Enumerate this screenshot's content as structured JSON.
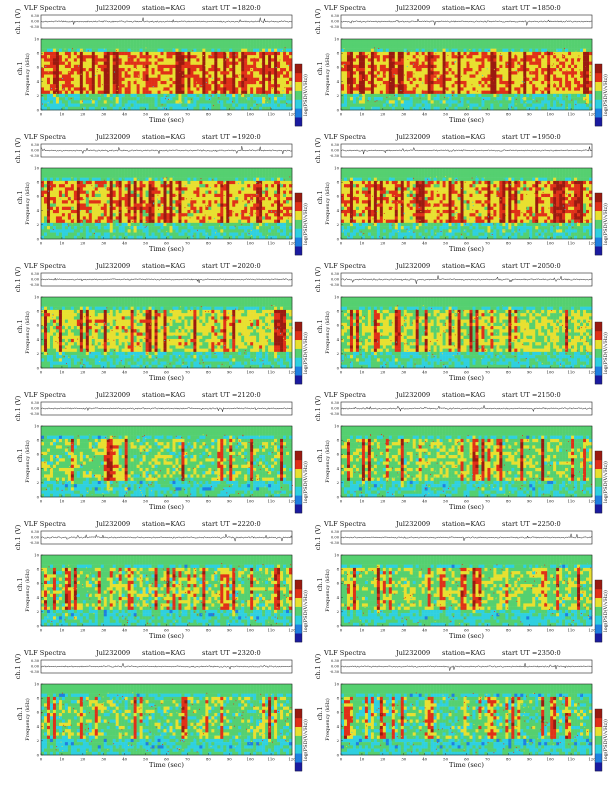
{
  "figure": {
    "program_title": "VLF Spectra",
    "station": "station=KAG",
    "time_axis_label": "Time (sec)",
    "time_ticks": [
      "0",
      "10",
      "20",
      "30",
      "40",
      "50",
      "60",
      "70",
      "80",
      "90",
      "100",
      "110",
      "120"
    ],
    "waveform_label": "ch.1 (V)",
    "waveform_ticks": [
      "0.30",
      "0.00",
      "-0.30"
    ],
    "freq_label": "Frequency (kHz)",
    "channel_label": "ch.1",
    "freq_ticks": [
      "0",
      "2",
      "4",
      "6",
      "8",
      "10"
    ],
    "colorbar_label": "log(PSD(V/√Hz))"
  },
  "panels": [
    {
      "date": "Jul232009",
      "ut": "start  UT =1820:0"
    },
    {
      "date": "Jul232009",
      "ut": "start  UT =1850:0"
    },
    {
      "date": "Jul232009",
      "ut": "start  UT =1920:0"
    },
    {
      "date": "Jul232009",
      "ut": "start  UT =1950:0"
    },
    {
      "date": "Jul232009",
      "ut": "start  UT =2020:0"
    },
    {
      "date": "Jul232009",
      "ut": "start  UT =2050:0"
    },
    {
      "date": "Jul232009",
      "ut": "start  UT =2120:0"
    },
    {
      "date": "Jul232009",
      "ut": "start  UT =2150:0"
    },
    {
      "date": "Jul232009",
      "ut": "start  UT =2220:0"
    },
    {
      "date": "Jul232009",
      "ut": "start  UT =2250:0"
    },
    {
      "date": "Jul232009",
      "ut": "start  UT =2320:0"
    },
    {
      "date": "Jul232009",
      "ut": "start  UT =2350:0"
    }
  ],
  "chart_data": {
    "type": "heatmap",
    "x_range": [
      0,
      120
    ],
    "y_range_khz": [
      0,
      10
    ],
    "waveform_range_v": [
      -0.3,
      0.3
    ],
    "colormap": [
      "#1a1aa0",
      "#1f7fe0",
      "#2fd0e0",
      "#55d070",
      "#e8e030",
      "#e03018",
      "#9a1a10"
    ]
  }
}
